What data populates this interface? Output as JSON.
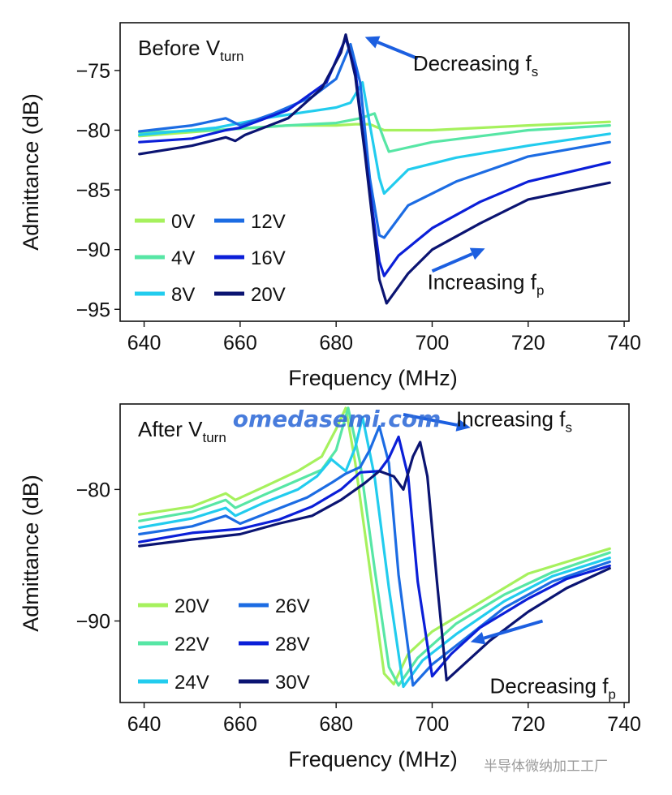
{
  "watermark": "omedasemi.com",
  "footer_mark": "半导体微纳加工工厂",
  "chart_data": [
    {
      "type": "line",
      "panel_title_main": "Before V",
      "panel_title_sub": "turn",
      "xlabel": "Frequency (MHz)",
      "ylabel": "Admittance (dB)",
      "xlim": [
        635,
        741
      ],
      "ylim": [
        -96,
        -71
      ],
      "xticks": [
        640,
        660,
        680,
        700,
        720,
        740
      ],
      "yticks": [
        -75,
        -80,
        -85,
        -90,
        -95
      ],
      "legend_columns": 2,
      "annotations": [
        {
          "main": "Decreasing f",
          "sub": "s",
          "arrow_from": [
            697,
            -74.0
          ],
          "arrow_to": [
            686,
            -72.2
          ],
          "text_x": 696,
          "text_y": -75.0
        },
        {
          "main": "Increasing f",
          "sub": "p",
          "arrow_from": [
            700,
            -91.8
          ],
          "arrow_to": [
            711,
            -89.9
          ],
          "text_x": 699,
          "text_y": -93.3
        }
      ],
      "series": [
        {
          "name": "0V",
          "color": "#a6f15d",
          "points": [
            [
              639,
              -80.5
            ],
            [
              655,
              -80.0
            ],
            [
              670,
              -79.6
            ],
            [
              680,
              -79.6
            ],
            [
              684,
              -79.5
            ],
            [
              687,
              -79.5
            ],
            [
              690,
              -80.0
            ],
            [
              700,
              -80.0
            ],
            [
              720,
              -79.6
            ],
            [
              737,
              -79.3
            ]
          ]
        },
        {
          "name": "4V",
          "color": "#57e6a5",
          "points": [
            [
              639,
              -80.2
            ],
            [
              655,
              -80.0
            ],
            [
              670,
              -79.6
            ],
            [
              680,
              -79.4
            ],
            [
              685,
              -79.0
            ],
            [
              688,
              -78.6
            ],
            [
              690,
              -80.8
            ],
            [
              691,
              -81.8
            ],
            [
              700,
              -81.0
            ],
            [
              720,
              -80.0
            ],
            [
              737,
              -79.6
            ]
          ]
        },
        {
          "name": "8V",
          "color": "#22ccee",
          "points": [
            [
              639,
              -80.4
            ],
            [
              655,
              -79.8
            ],
            [
              665,
              -79.0
            ],
            [
              675,
              -78.4
            ],
            [
              680,
              -78.1
            ],
            [
              683,
              -77.7
            ],
            [
              685.5,
              -76.0
            ],
            [
              687,
              -79.5
            ],
            [
              689,
              -84.0
            ],
            [
              690,
              -85.3
            ],
            [
              695,
              -83.3
            ],
            [
              705,
              -82.3
            ],
            [
              720,
              -81.3
            ],
            [
              737,
              -80.3
            ]
          ]
        },
        {
          "name": "12V",
          "color": "#1c6ce3",
          "points": [
            [
              639,
              -80.1
            ],
            [
              650,
              -79.6
            ],
            [
              657,
              -79.0
            ],
            [
              660,
              -79.6
            ],
            [
              667,
              -78.6
            ],
            [
              675,
              -77.2
            ],
            [
              680,
              -75.7
            ],
            [
              683,
              -72.8
            ],
            [
              685,
              -76.0
            ],
            [
              687,
              -84.0
            ],
            [
              689,
              -88.8
            ],
            [
              690,
              -89.0
            ],
            [
              695,
              -86.3
            ],
            [
              705,
              -84.3
            ],
            [
              720,
              -82.2
            ],
            [
              737,
              -81.0
            ]
          ]
        },
        {
          "name": "16V",
          "color": "#0b1fd8",
          "points": [
            [
              639,
              -81.0
            ],
            [
              650,
              -80.7
            ],
            [
              657,
              -80.0
            ],
            [
              660,
              -79.8
            ],
            [
              670,
              -78.3
            ],
            [
              678,
              -76.0
            ],
            [
              682,
              -72.3
            ],
            [
              684,
              -75.0
            ],
            [
              687,
              -85.0
            ],
            [
              689,
              -91.0
            ],
            [
              690,
              -92.2
            ],
            [
              693,
              -90.5
            ],
            [
              700,
              -88.2
            ],
            [
              710,
              -86.0
            ],
            [
              720,
              -84.3
            ],
            [
              737,
              -82.7
            ]
          ]
        },
        {
          "name": "20V",
          "color": "#0b1472",
          "points": [
            [
              639,
              -82.0
            ],
            [
              650,
              -81.3
            ],
            [
              657,
              -80.6
            ],
            [
              659,
              -80.9
            ],
            [
              661,
              -80.4
            ],
            [
              670,
              -79.0
            ],
            [
              677,
              -76.5
            ],
            [
              681,
              -73.5
            ],
            [
              682,
              -72.0
            ],
            [
              684,
              -75.5
            ],
            [
              686,
              -82.0
            ],
            [
              689,
              -92.5
            ],
            [
              690.5,
              -94.5
            ],
            [
              695,
              -92.0
            ],
            [
              700,
              -90.0
            ],
            [
              710,
              -87.8
            ],
            [
              720,
              -85.8
            ],
            [
              737,
              -84.4
            ]
          ]
        }
      ]
    },
    {
      "type": "line",
      "panel_title_main": "After V",
      "panel_title_sub": "turn",
      "xlabel": "Frequency (MHz)",
      "ylabel": "Admittance (dB)",
      "xlim": [
        635,
        741
      ],
      "ylim": [
        -96.2,
        -73.5
      ],
      "xticks": [
        640,
        660,
        680,
        700,
        720,
        740
      ],
      "yticks": [
        -80,
        -90
      ],
      "legend_columns": 2,
      "annotations": [
        {
          "main": "Increasing f",
          "sub": "s",
          "arrow_from": [
            694,
            -74.3
          ],
          "arrow_to": [
            708,
            -75.3
          ],
          "text_x": 705,
          "text_y": -75.2
        },
        {
          "main": "Decreasing f",
          "sub": "p",
          "arrow_from": [
            723,
            -90.0
          ],
          "arrow_to": [
            708,
            -91.6
          ],
          "text_x": 712,
          "text_y": -95.5
        }
      ],
      "series": [
        {
          "name": "20V",
          "color": "#a6f15d",
          "points": [
            [
              639,
              -81.9
            ],
            [
              650,
              -81.3
            ],
            [
              657,
              -80.3
            ],
            [
              659,
              -80.8
            ],
            [
              665,
              -79.8
            ],
            [
              672,
              -78.6
            ],
            [
              677,
              -77.5
            ],
            [
              680,
              -75.4
            ],
            [
              682,
              -73.8
            ],
            [
              684,
              -78.0
            ],
            [
              687,
              -86.0
            ],
            [
              690,
              -94.0
            ],
            [
              692,
              -94.8
            ],
            [
              695,
              -92.5
            ],
            [
              700,
              -90.8
            ],
            [
              710,
              -88.6
            ],
            [
              720,
              -86.4
            ],
            [
              737,
              -84.5
            ]
          ]
        },
        {
          "name": "22V",
          "color": "#57e6a5",
          "points": [
            [
              639,
              -82.4
            ],
            [
              650,
              -81.7
            ],
            [
              657,
              -80.8
            ],
            [
              659,
              -81.4
            ],
            [
              665,
              -80.4
            ],
            [
              672,
              -79.3
            ],
            [
              677,
              -78.5
            ],
            [
              680,
              -77.0
            ],
            [
              682.5,
              -73.8
            ],
            [
              685,
              -78.0
            ],
            [
              688,
              -86.0
            ],
            [
              691,
              -93.5
            ],
            [
              693,
              -94.9
            ],
            [
              697,
              -92.8
            ],
            [
              705,
              -90.2
            ],
            [
              715,
              -88.0
            ],
            [
              725,
              -86.3
            ],
            [
              737,
              -84.8
            ]
          ]
        },
        {
          "name": "24V",
          "color": "#22ccee",
          "points": [
            [
              639,
              -82.9
            ],
            [
              650,
              -82.2
            ],
            [
              657,
              -81.4
            ],
            [
              659,
              -82.0
            ],
            [
              665,
              -81.0
            ],
            [
              672,
              -80.0
            ],
            [
              676,
              -79.0
            ],
            [
              679,
              -77.7
            ],
            [
              682,
              -78.6
            ],
            [
              684,
              -76.8
            ],
            [
              685.5,
              -74.5
            ],
            [
              688,
              -79.0
            ],
            [
              691,
              -87.5
            ],
            [
              694,
              -95.0
            ],
            [
              698,
              -93.0
            ],
            [
              705,
              -91.0
            ],
            [
              715,
              -88.5
            ],
            [
              725,
              -86.6
            ],
            [
              737,
              -85.2
            ]
          ]
        },
        {
          "name": "26V",
          "color": "#1c6ce3",
          "points": [
            [
              639,
              -83.4
            ],
            [
              650,
              -82.8
            ],
            [
              657,
              -82.0
            ],
            [
              660,
              -82.6
            ],
            [
              667,
              -81.6
            ],
            [
              674,
              -80.6
            ],
            [
              679,
              -79.5
            ],
            [
              682,
              -78.8
            ],
            [
              685,
              -78.3
            ],
            [
              687,
              -77.0
            ],
            [
              689,
              -75.2
            ],
            [
              691,
              -78.0
            ],
            [
              693,
              -86.5
            ],
            [
              696,
              -94.9
            ],
            [
              700,
              -93.3
            ],
            [
              707,
              -91.3
            ],
            [
              715,
              -89.0
            ],
            [
              725,
              -87.0
            ],
            [
              737,
              -85.5
            ]
          ]
        },
        {
          "name": "28V",
          "color": "#0b1fd8",
          "points": [
            [
              639,
              -84.0
            ],
            [
              650,
              -83.3
            ],
            [
              660,
              -83.0
            ],
            [
              668,
              -82.3
            ],
            [
              675,
              -81.3
            ],
            [
              681,
              -80.0
            ],
            [
              685,
              -78.7
            ],
            [
              689,
              -78.6
            ],
            [
              691,
              -77.6
            ],
            [
              693,
              -76.0
            ],
            [
              695,
              -79.0
            ],
            [
              697,
              -87.0
            ],
            [
              700,
              -94.2
            ],
            [
              704,
              -92.5
            ],
            [
              710,
              -90.5
            ],
            [
              720,
              -88.3
            ],
            [
              728,
              -86.8
            ],
            [
              737,
              -85.8
            ]
          ]
        },
        {
          "name": "30V",
          "color": "#0b1472",
          "points": [
            [
              639,
              -84.3
            ],
            [
              650,
              -83.8
            ],
            [
              660,
              -83.4
            ],
            [
              668,
              -82.6
            ],
            [
              675,
              -82.0
            ],
            [
              681,
              -80.8
            ],
            [
              686,
              -79.5
            ],
            [
              689,
              -78.6
            ],
            [
              692,
              -79.0
            ],
            [
              694,
              -80.0
            ],
            [
              696,
              -77.5
            ],
            [
              697.5,
              -76.4
            ],
            [
              699,
              -79.0
            ],
            [
              701,
              -87.0
            ],
            [
              703,
              -94.5
            ],
            [
              706,
              -93.5
            ],
            [
              712,
              -91.5
            ],
            [
              720,
              -89.3
            ],
            [
              728,
              -87.5
            ],
            [
              737,
              -86.0
            ]
          ]
        }
      ]
    }
  ]
}
